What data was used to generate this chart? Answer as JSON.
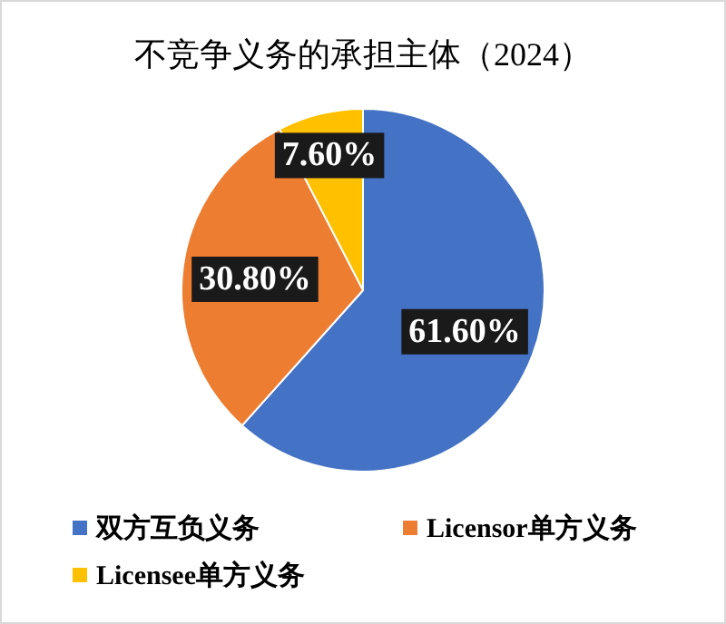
{
  "chart_data": {
    "type": "pie",
    "title": "不竞争义务的承担主体（2024）",
    "categories": [
      "双方互负义务",
      "Licensor单方义务",
      "Licensee单方义务"
    ],
    "values": [
      61.6,
      30.8,
      7.6
    ],
    "colors": [
      "#4472c4",
      "#ed7d31",
      "#ffc000"
    ],
    "value_labels": [
      "61.60%",
      "30.80%",
      "7.60%"
    ],
    "legend": "bottom"
  }
}
